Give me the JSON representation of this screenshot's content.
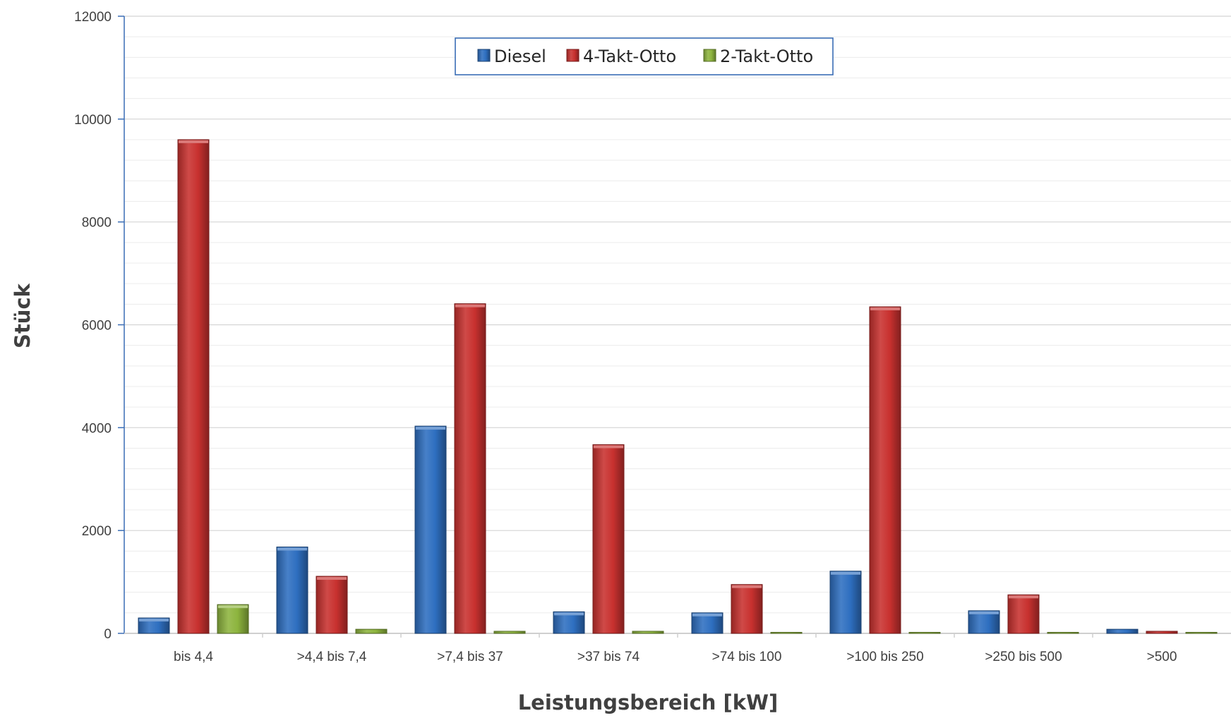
{
  "chart_data": {
    "type": "bar",
    "title": "",
    "xlabel": "Leistungsbereich [kW]",
    "ylabel": "Stück",
    "ylim": [
      0,
      12000
    ],
    "yticks": [
      0,
      2000,
      4000,
      6000,
      8000,
      10000,
      12000
    ],
    "grid": true,
    "legend_position": "top-center",
    "categories": [
      "bis 4,4",
      ">4,4 bis 7,4",
      ">7,4 bis 37",
      ">37 bis 74",
      ">74 bis 100",
      ">100 bis 250",
      ">250 bis 500",
      ">500"
    ],
    "series": [
      {
        "name": "Diesel",
        "color": "#2E6FC0",
        "values": [
          300,
          1680,
          4030,
          420,
          400,
          1210,
          440,
          80
        ]
      },
      {
        "name": "4-Takt-Otto",
        "color": "#C8312F",
        "values": [
          9600,
          1110,
          6410,
          3670,
          950,
          6350,
          750,
          20
        ]
      },
      {
        "name": "2-Takt-Otto",
        "color": "#8DB43E",
        "values": [
          560,
          80,
          10,
          20,
          0,
          0,
          0,
          0
        ]
      }
    ]
  }
}
